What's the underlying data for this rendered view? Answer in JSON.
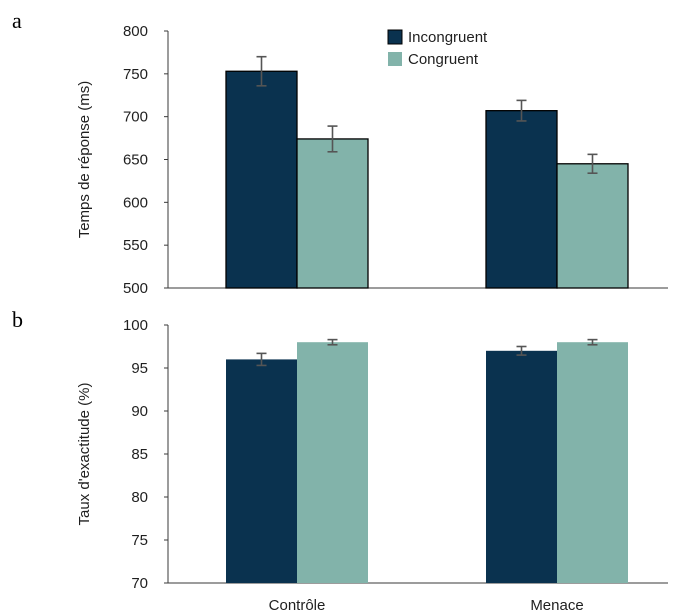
{
  "chart_data": [
    {
      "panel": "a",
      "type": "bar",
      "categories": [
        "Contrôle",
        "Menace"
      ],
      "series": [
        {
          "name": "Incongruent",
          "color": "#0a324f",
          "values": [
            753,
            707
          ],
          "error": [
            17,
            12
          ]
        },
        {
          "name": "Congruent",
          "color": "#82b3aa",
          "values": [
            674,
            645
          ],
          "error": [
            15,
            11
          ]
        }
      ],
      "ylabel": "Temps de réponse (ms)",
      "ylim": [
        500,
        800
      ],
      "yticks": [
        500,
        550,
        600,
        650,
        700,
        750,
        800
      ],
      "legend": "top-center",
      "grid": false
    },
    {
      "panel": "b",
      "type": "bar",
      "categories": [
        "Contrôle",
        "Menace"
      ],
      "series": [
        {
          "name": "Incongruent",
          "color": "#0a324f",
          "values": [
            96.0,
            97.0
          ],
          "error": [
            0.7,
            0.5
          ]
        },
        {
          "name": "Congruent",
          "color": "#82b3aa",
          "values": [
            98.0,
            98.0
          ],
          "error": [
            0.3,
            0.3
          ]
        }
      ],
      "ylabel": "Taux d'exactitude (%)",
      "ylim": [
        70,
        100
      ],
      "yticks": [
        70,
        75,
        80,
        85,
        90,
        95,
        100
      ],
      "legend": "none",
      "grid": false
    }
  ]
}
